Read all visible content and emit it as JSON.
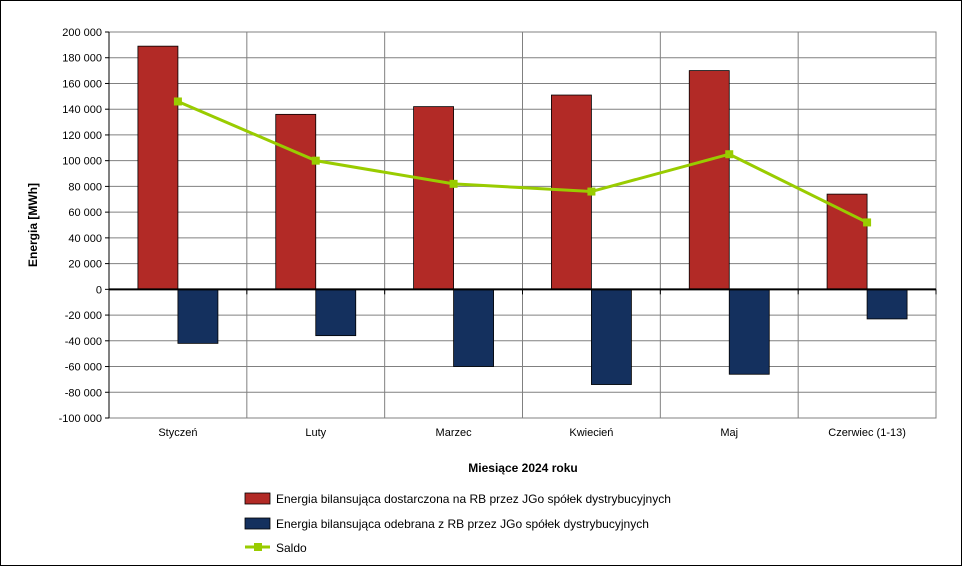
{
  "chart_data": {
    "type": "bar",
    "categories": [
      "Styczeń",
      "Luty",
      "Marzec",
      "Kwiecień",
      "Maj",
      "Czerwiec (1-13)"
    ],
    "series": [
      {
        "name": "Energia bilansująca dostarczona na RB przez JGo spółek dystrybucyjnych",
        "kind": "bar",
        "color": "#b22a26",
        "values": [
          189000,
          136000,
          142000,
          151000,
          170000,
          74000
        ]
      },
      {
        "name": "Energia bilansująca odebrana z RB przez JGo spółek dystrybucyjnych",
        "kind": "bar",
        "color": "#14305e",
        "values": [
          -42000,
          -36000,
          -60000,
          -74000,
          -66000,
          -23000
        ]
      },
      {
        "name": "Saldo",
        "kind": "line",
        "color": "#99cc00",
        "values": [
          146000,
          100000,
          82000,
          76000,
          105000,
          52000
        ]
      }
    ],
    "xlabel": "Miesiące 2024  roku",
    "ylabel": "Energia [MWh]",
    "ylim": [
      -100000,
      200000
    ],
    "yticks": [
      "200 000",
      "180 000",
      "160 000",
      "140 000",
      "120 000",
      "100 000",
      "80 000",
      "60 000",
      "40 000",
      "20 000",
      "0",
      "-20 000",
      "-40 000",
      "-60 000",
      "-80 000",
      "-100 000"
    ],
    "ytick_values": [
      200000,
      180000,
      160000,
      140000,
      120000,
      100000,
      80000,
      60000,
      40000,
      20000,
      0,
      -20000,
      -40000,
      -60000,
      -80000,
      -100000
    ],
    "grid": true,
    "legend_position": "bottom"
  }
}
